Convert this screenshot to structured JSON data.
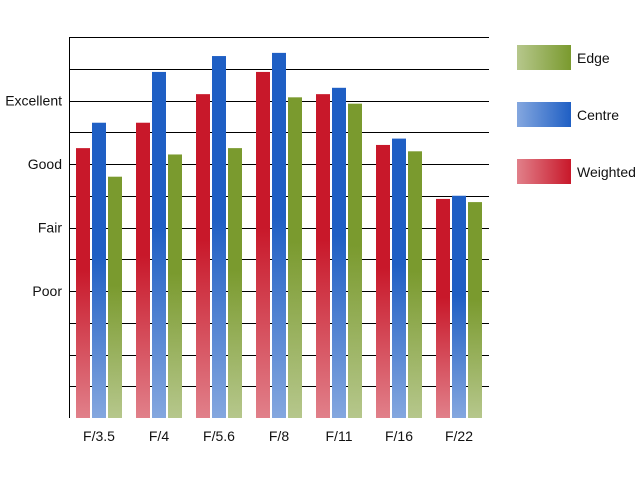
{
  "chart_data": {
    "type": "bar",
    "title": "",
    "xlabel": "",
    "ylabel": "",
    "categories": [
      "F/3.5",
      "F/4",
      "F/5.6",
      "F/8",
      "F/11",
      "F/16",
      "F/22"
    ],
    "series": [
      {
        "name": "Weighted",
        "color": "#c8182a",
        "values": [
          6.5,
          7.3,
          8.2,
          8.9,
          8.2,
          6.6,
          4.9
        ]
      },
      {
        "name": "Centre",
        "color": "#1f5fc4",
        "values": [
          7.3,
          8.9,
          9.4,
          9.5,
          8.4,
          6.8,
          5.0
        ]
      },
      {
        "name": "Edge",
        "color": "#7a9a2e",
        "values": [
          5.6,
          6.3,
          6.5,
          8.1,
          7.9,
          6.4,
          4.8
        ]
      }
    ],
    "y_tick_labels": [
      {
        "value": 2,
        "label": "Poor"
      },
      {
        "value": 4,
        "label": "Fair"
      },
      {
        "value": 6,
        "label": "Good"
      },
      {
        "value": 8,
        "label": "Excellent"
      }
    ],
    "ylim": [
      -2,
      10
    ],
    "grid_values": [
      -1,
      0,
      1,
      2,
      3,
      4,
      5,
      6,
      7,
      8,
      9,
      10
    ],
    "grid": true,
    "legend": {
      "placement": "right",
      "order": [
        "Edge",
        "Centre",
        "Weighted"
      ]
    }
  }
}
